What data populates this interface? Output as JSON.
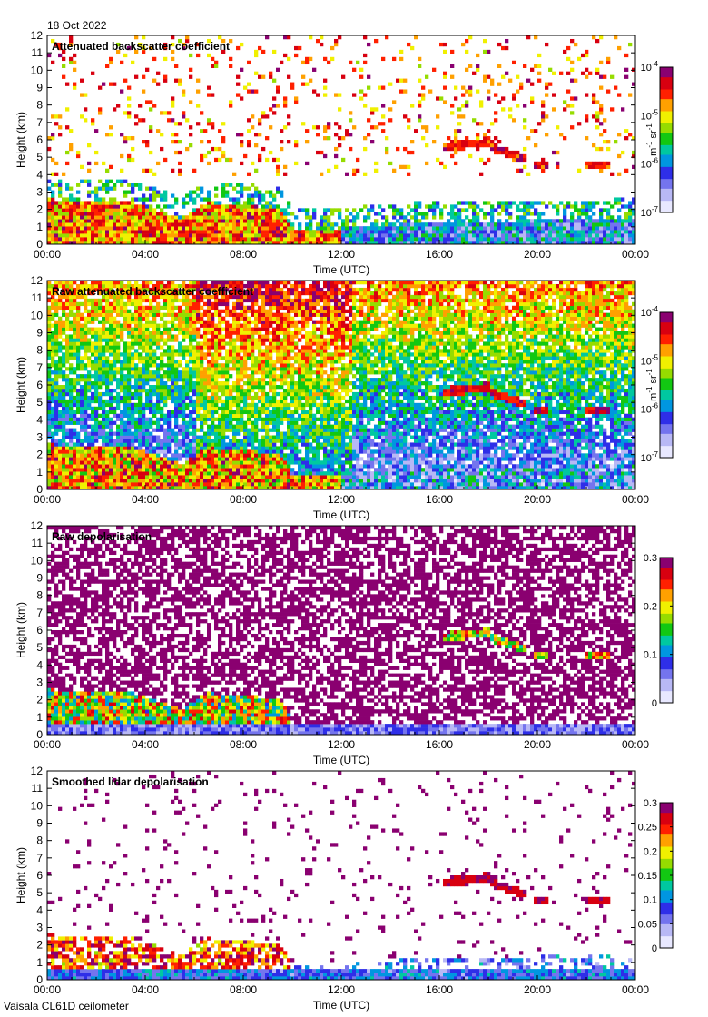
{
  "header": {
    "date": "18 Oct 2022"
  },
  "footer": {
    "instrument": "Vaisala CL61D ceilometer"
  },
  "chart_data": [
    {
      "type": "heatmap",
      "title": "Attenuated backscatter coefficient",
      "xlabel": "Time (UTC)",
      "ylabel": "Height (km)",
      "x_ticks": [
        "00:00",
        "04:00",
        "08:00",
        "12:00",
        "16:00",
        "20:00",
        "00:00"
      ],
      "y_ticks": [
        "0",
        "1",
        "2",
        "3",
        "4",
        "5",
        "6",
        "7",
        "8",
        "9",
        "10",
        "11",
        "12"
      ],
      "xlim_hours": [
        0,
        24
      ],
      "ylim_km": [
        0,
        12
      ],
      "colorbar": {
        "scale": "log",
        "range": [
          1e-07,
          0.0001
        ],
        "tick_base": "10",
        "tick_exps": [
          "-4",
          "-5",
          "-6",
          "-7"
        ],
        "unit_pre": "m",
        "unit_mid": " sr",
        "unit_exp": "-1"
      },
      "features": {
        "boundary_layer_top_km": [
          [
            0,
            2.6
          ],
          [
            2,
            2.5
          ],
          [
            3.5,
            2.4
          ],
          [
            5.5,
            1.5
          ],
          [
            6.5,
            2.4
          ],
          [
            8,
            2.3
          ],
          [
            9.5,
            2.0
          ],
          [
            10,
            0.9
          ],
          [
            12,
            0.9
          ],
          [
            16,
            1.3
          ],
          [
            24,
            1.4
          ]
        ],
        "cloud_layers": [
          {
            "t0": 16.2,
            "t1": 18.0,
            "h0": 5.6,
            "h1": 5.9
          },
          {
            "t0": 18.0,
            "t1": 19.5,
            "h0": 5.6,
            "h1": 4.9
          },
          {
            "t0": 19.8,
            "t1": 20.4,
            "h0": 4.6,
            "h1": 4.5
          },
          {
            "t0": 22.0,
            "t1": 22.9,
            "h0": 4.6,
            "h1": 4.5
          }
        ]
      }
    },
    {
      "type": "heatmap",
      "title": "Raw attenuated backscatter coefficient",
      "xlabel": "Time (UTC)",
      "ylabel": "Height (km)",
      "x_ticks": [
        "00:00",
        "04:00",
        "08:00",
        "12:00",
        "16:00",
        "20:00",
        "00:00"
      ],
      "y_ticks": [
        "0",
        "1",
        "2",
        "3",
        "4",
        "5",
        "6",
        "7",
        "8",
        "9",
        "10",
        "11",
        "12"
      ],
      "xlim_hours": [
        0,
        24
      ],
      "ylim_km": [
        0,
        12
      ],
      "colorbar": {
        "scale": "log",
        "range": [
          1e-07,
          0.0001
        ],
        "tick_base": "10",
        "tick_exps": [
          "-4",
          "-5",
          "-6",
          "-7"
        ],
        "unit_pre": "m",
        "unit_mid": " sr",
        "unit_exp": "-1"
      }
    },
    {
      "type": "heatmap",
      "title": "Raw depolarisation",
      "xlabel": "Time (UTC)",
      "ylabel": "Height (km)",
      "x_ticks": [
        "00:00",
        "04:00",
        "08:00",
        "12:00",
        "16:00",
        "20:00",
        "00:00"
      ],
      "y_ticks": [
        "0",
        "1",
        "2",
        "3",
        "4",
        "5",
        "6",
        "7",
        "8",
        "9",
        "10",
        "11",
        "12"
      ],
      "xlim_hours": [
        0,
        24
      ],
      "ylim_km": [
        0,
        12
      ],
      "colorbar": {
        "scale": "linear",
        "range": [
          0,
          0.3
        ],
        "ticks": [
          "0.3",
          "0.2",
          "0.1",
          "0"
        ]
      }
    },
    {
      "type": "heatmap",
      "title": "Smoothed lidar depolarisation",
      "xlabel": "Time (UTC)",
      "ylabel": "Height (km)",
      "x_ticks": [
        "00:00",
        "04:00",
        "08:00",
        "12:00",
        "16:00",
        "20:00",
        "00:00"
      ],
      "y_ticks": [
        "0",
        "1",
        "2",
        "3",
        "4",
        "5",
        "6",
        "7",
        "8",
        "9",
        "10",
        "11",
        "12"
      ],
      "xlim_hours": [
        0,
        24
      ],
      "ylim_km": [
        0,
        12
      ],
      "colorbar": {
        "scale": "linear",
        "range": [
          0,
          0.3
        ],
        "ticks": [
          "0.3",
          "0.25",
          "0.2",
          "0.15",
          "0.1",
          "0.05",
          "0"
        ]
      }
    }
  ]
}
